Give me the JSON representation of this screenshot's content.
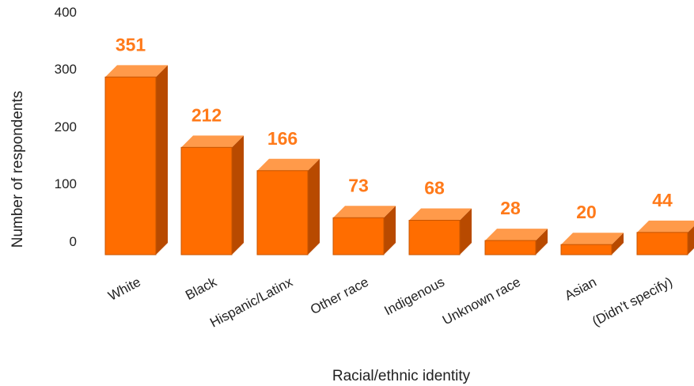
{
  "chart_data": {
    "type": "bar",
    "title": "",
    "xlabel": "Racial/ethnic identity",
    "ylabel": "Number of respondents",
    "categories": [
      "White",
      "Black",
      "Hispanic/Latinx",
      "Other race",
      "Indigenous",
      "Unknown race",
      "Asian",
      "(Didn't specify)"
    ],
    "values": [
      351,
      212,
      166,
      73,
      68,
      28,
      20,
      44
    ],
    "value_labels": [
      "351",
      "212",
      "166",
      "73",
      "68",
      "28",
      "20",
      "44"
    ],
    "y_ticks": [
      "0",
      "100",
      "200",
      "300",
      "400"
    ],
    "ylim": [
      0,
      400
    ],
    "grid": false,
    "legend": "none",
    "colors": {
      "bar_front": "#ff6d00",
      "bar_top": "#ff9a4a",
      "bar_side": "#b84a00",
      "bar_edge": "#c75500",
      "value_label": "#ff7a1a",
      "text": "#222222"
    }
  }
}
